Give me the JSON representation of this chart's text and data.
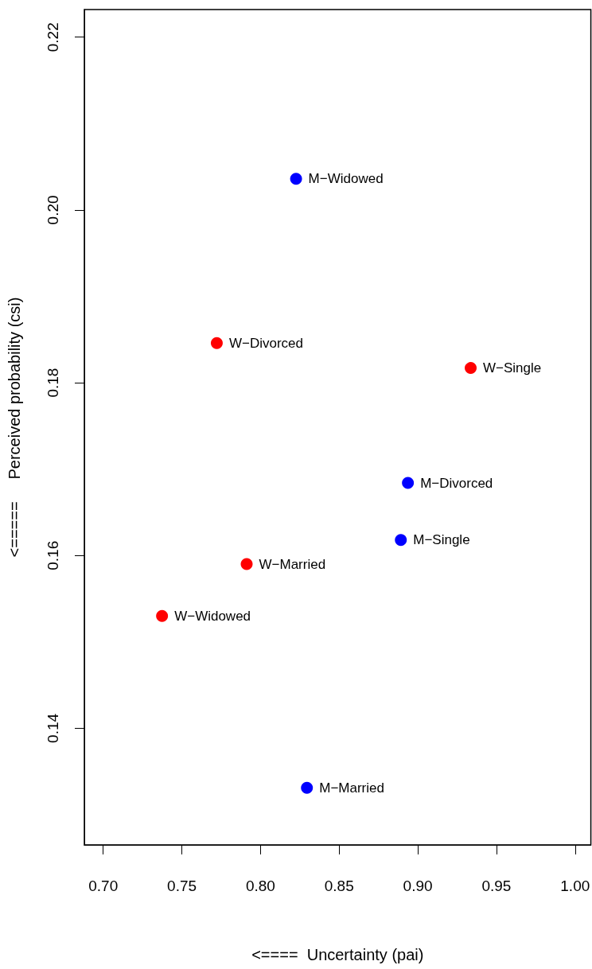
{
  "chart_data": {
    "type": "scatter",
    "xlabel": "<====  Uncertainty (pai)",
    "ylabel": "<=====     Perceived probability (csi)",
    "series": [
      {
        "color": "#0000ff",
        "x": [
          0.8226,
          0.8937,
          0.8892,
          0.8295
        ],
        "values": [
          0.2036,
          0.1684,
          0.1618,
          0.1331
        ],
        "value_labels": [
          "M−Widowed",
          "M−Divorced",
          "M−Single",
          "M−Married"
        ]
      },
      {
        "color": "#ff0000",
        "x": [
          0.7722,
          0.9336,
          0.7912,
          0.7374
        ],
        "values": [
          0.1846,
          0.1817,
          0.159,
          0.153
        ],
        "value_labels": [
          "W−Divorced",
          "W−Single",
          "W−Married",
          "W−Widowed"
        ]
      }
    ],
    "xlim": [
      0.688,
      1.01
    ],
    "ylim": [
      0.1265,
      0.2232
    ],
    "xticks": [
      {
        "value": 0.7,
        "label": "0.70"
      },
      {
        "value": 0.75,
        "label": "0.75"
      },
      {
        "value": 0.8,
        "label": "0.80"
      },
      {
        "value": 0.85,
        "label": "0.85"
      },
      {
        "value": 0.9,
        "label": "0.90"
      },
      {
        "value": 0.95,
        "label": "0.95"
      },
      {
        "value": 1.0,
        "label": "1.00"
      }
    ],
    "yticks": [
      {
        "value": 0.14,
        "label": "0.14"
      },
      {
        "value": 0.16,
        "label": "0.16"
      },
      {
        "value": 0.18,
        "label": "0.18"
      },
      {
        "value": 0.2,
        "label": "0.20"
      },
      {
        "value": 0.22,
        "label": "0.22"
      }
    ],
    "grid": false,
    "marker": "circle"
  }
}
